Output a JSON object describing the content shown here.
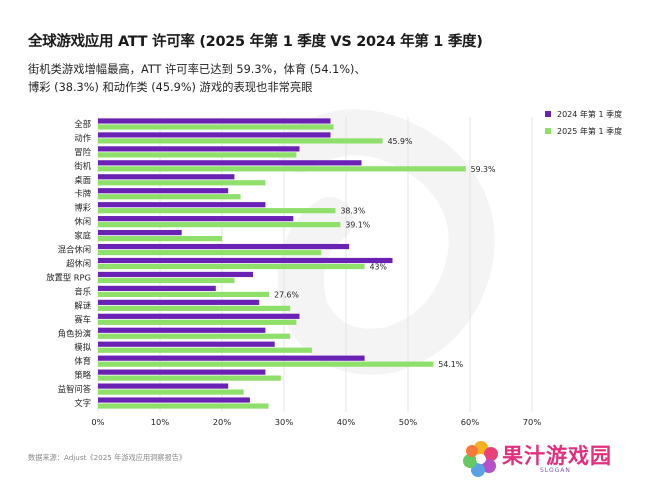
{
  "header": {
    "title": "全球游戏应用 ATT 许可率 (2025 年第 1 季度 VS 2024 年第 1 季度)",
    "subtitle_line1": "街机类游戏增幅最高，ATT 许可率已达到 59.3%，体育 (54.1%)、",
    "subtitle_line2": "博彩 (38.3%) 和动作类 (45.9%) 游戏的表现也非常亮眼"
  },
  "footer": {
    "source": "数据来源：Adjust《2025 年游戏应用洞察报告》"
  },
  "logo": {
    "text": "果汁游戏园",
    "slogan": "SLOGAN"
  },
  "colors": {
    "series_2024": "#6a22b5",
    "series_2025": "#8fe06a",
    "grid": "#e4e4e4",
    "watermark": "#f4f4f4"
  },
  "chart_data": {
    "type": "bar",
    "orientation": "horizontal",
    "title": "",
    "xlabel": "",
    "ylabel": "",
    "xlim": [
      0,
      70
    ],
    "x_ticks": [
      "0%",
      "10%",
      "20%",
      "30%",
      "40%",
      "50%",
      "60%",
      "70%"
    ],
    "grid": true,
    "legend_position": "top-right",
    "categories": [
      "全部",
      "动作",
      "冒险",
      "街机",
      "桌面",
      "卡牌",
      "博彩",
      "休闲",
      "家庭",
      "混合休闲",
      "超休闲",
      "放置型 RPG",
      "音乐",
      "解谜",
      "赛车",
      "角色扮演",
      "模拟",
      "体育",
      "策略",
      "益智问答",
      "文字"
    ],
    "series": [
      {
        "name": "2024 年第 1 季度",
        "values": [
          37.5,
          37.5,
          32.5,
          42.5,
          22,
          21,
          27,
          31.5,
          13.5,
          40.5,
          47.5,
          25,
          19,
          26,
          32.5,
          27,
          28.5,
          43,
          27,
          21,
          24.5
        ]
      },
      {
        "name": "2025 年第 1 季度",
        "values": [
          38,
          45.9,
          32,
          59.3,
          27,
          23,
          38.3,
          39.1,
          20,
          36,
          43,
          22,
          27.6,
          31,
          32,
          31,
          34.5,
          54.1,
          29.5,
          23.5,
          27.5
        ]
      }
    ],
    "data_labels": [
      {
        "category": "动作",
        "series": "2025 年第 1 季度",
        "text": "45.9%"
      },
      {
        "category": "街机",
        "series": "2025 年第 1 季度",
        "text": "59.3%"
      },
      {
        "category": "博彩",
        "series": "2025 年第 1 季度",
        "text": "38.3%"
      },
      {
        "category": "休闲",
        "series": "2025 年第 1 季度",
        "text": "39.1%"
      },
      {
        "category": "超休闲",
        "series": "2025 年第 1 季度",
        "text": "43%"
      },
      {
        "category": "音乐",
        "series": "2025 年第 1 季度",
        "text": "27.6%"
      },
      {
        "category": "体育",
        "series": "2025 年第 1 季度",
        "text": "54.1%"
      }
    ]
  }
}
